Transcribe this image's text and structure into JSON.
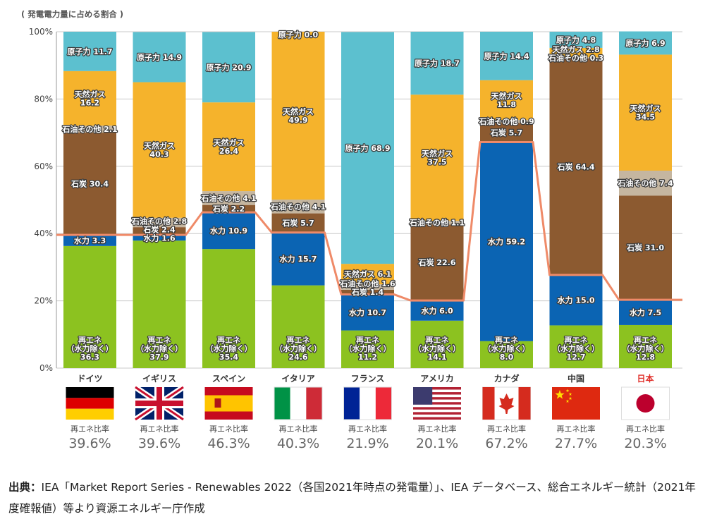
{
  "chart_data": {
    "type": "bar",
    "stacked": true,
    "ylabel": "( 発電電力量に占める割合 )",
    "ylim": [
      0,
      100
    ],
    "yticks": [
      "0%",
      "20%",
      "40%",
      "60%",
      "80%",
      "100%"
    ],
    "grid": true,
    "categories": [
      "ドイツ",
      "イギリス",
      "スペイン",
      "イタリア",
      "フランス",
      "アメリカ",
      "カナダ",
      "中国",
      "日本"
    ],
    "highlight_category": "日本",
    "series": [
      {
        "name": "再エネ（水力除く）",
        "label": "再エネ",
        "sublabel": "（水力除く）",
        "color": "#8cc220",
        "values": [
          36.3,
          37.9,
          35.4,
          24.6,
          11.2,
          14.1,
          8.0,
          12.7,
          12.8
        ]
      },
      {
        "name": "水力",
        "label": "水力",
        "color": "#0b64b3",
        "values": [
          3.3,
          1.6,
          10.9,
          15.7,
          10.7,
          6.0,
          59.2,
          15.0,
          7.5
        ]
      },
      {
        "name": "石炭",
        "label": "石炭",
        "color": "#8c5a30",
        "values": [
          30.4,
          2.4,
          2.2,
          5.7,
          1.4,
          22.6,
          5.7,
          64.4,
          31.0
        ]
      },
      {
        "name": "石油その他",
        "label": "石油その他",
        "color": "#c5b6a0",
        "values": [
          2.1,
          2.8,
          4.1,
          4.1,
          1.6,
          1.1,
          0.9,
          0.3,
          7.4
        ]
      },
      {
        "name": "天然ガス",
        "label": "天然ガス",
        "color": "#f5b32c",
        "values": [
          16.2,
          40.3,
          26.4,
          49.9,
          6.1,
          37.5,
          11.8,
          2.8,
          34.5
        ]
      },
      {
        "name": "原子力",
        "label": "原子力",
        "color": "#5cc0cf",
        "values": [
          11.7,
          14.9,
          20.9,
          0.0,
          68.9,
          18.7,
          14.4,
          4.8,
          6.9
        ]
      }
    ],
    "renewable_ratio": {
      "label": "再エネ比率",
      "values": [
        39.6,
        39.6,
        46.3,
        40.3,
        21.9,
        20.1,
        67.2,
        27.7,
        20.3
      ],
      "display": [
        "39.6%",
        "39.6%",
        "46.3%",
        "40.3%",
        "21.9%",
        "20.1%",
        "67.2%",
        "27.7%",
        "20.3%"
      ],
      "line_color": "#ef8a68"
    },
    "flags": [
      "germany-flag",
      "uk-flag",
      "spain-flag",
      "italy-flag",
      "france-flag",
      "usa-flag",
      "canada-flag",
      "china-flag",
      "japan-flag"
    ]
  },
  "footer": {
    "source_label": "出典：",
    "source_text": "IEA「Market Report Series - Renewables 2022（各国2021年時点の発電量）」、IEA データベース、総合エネルギー統計（2021年度確報値）等より資源エネルギー庁作成"
  }
}
